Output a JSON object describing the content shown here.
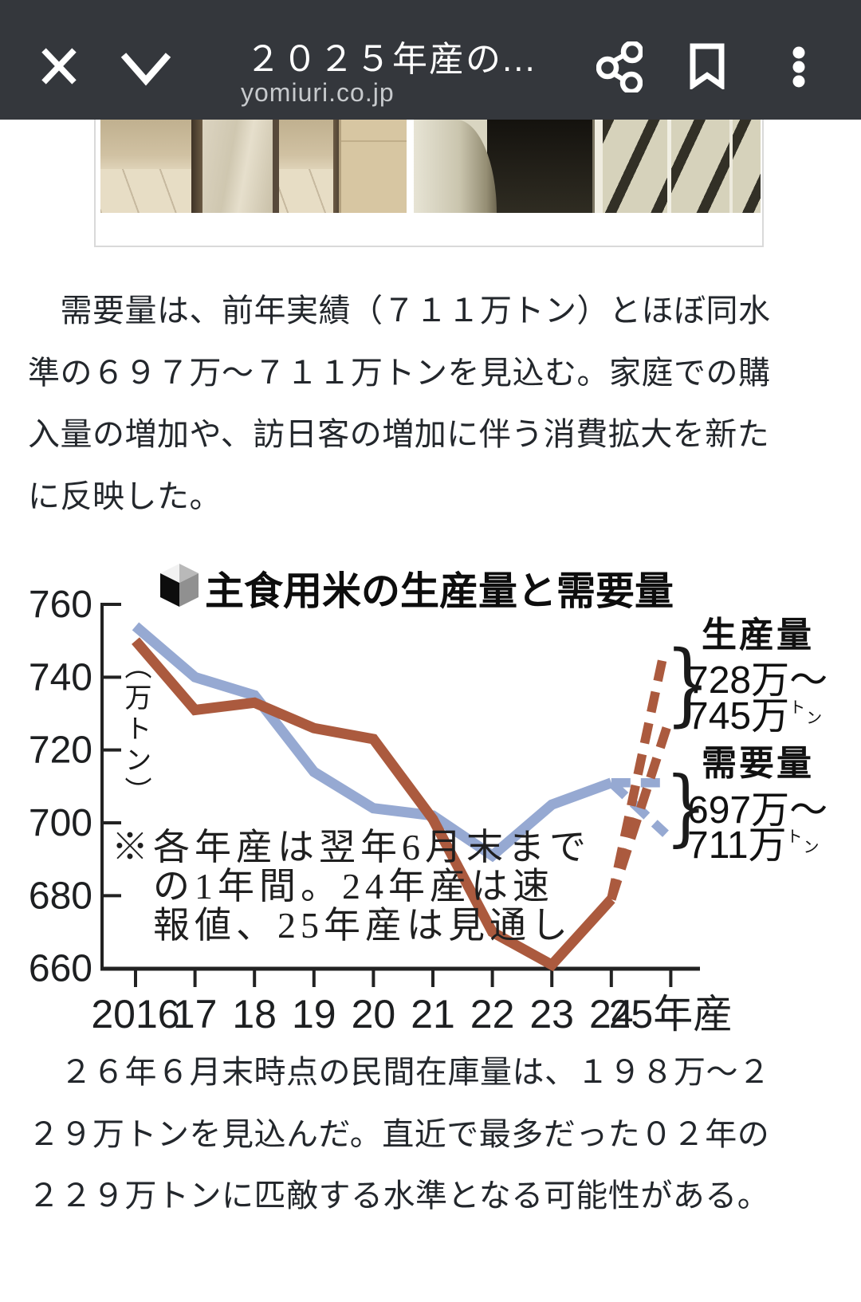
{
  "header": {
    "title": "２０２５年産の...",
    "domain": "yomiuri.co.jp",
    "icons": {
      "close": "close-x",
      "collapse": "chevron-down",
      "share": "share-nodes",
      "bookmark": "bookmark-outline",
      "menu": "kebab-menu"
    }
  },
  "article": {
    "paragraph1": "　需要量は、前年実績（７１１万トン）とほぼ同水\n準の６９７万～７１１万トンを見込む。家庭での購\n入量の増加や、訪日客の増加に伴う消費拡大を新た\nに反映した。",
    "paragraph2": "　２６年６月末時点の民間在庫量は、１９８万～２\n２９万トンを見込んだ。直近で最多だった０２年の\n２２９万トンに匹敵する水準となる可能性がある。"
  },
  "chart_data": {
    "type": "line",
    "title": "主食用米の生産量と需要量",
    "unit_label": "（万トン）",
    "note": "※各年産は翌年6月末まで\n　の1年間。24年産は速\n　報値、25年産は見通し",
    "x_categories": [
      "2016",
      "17",
      "18",
      "19",
      "20",
      "21",
      "22",
      "23",
      "24",
      "25年産"
    ],
    "yticks": [
      760,
      740,
      720,
      700,
      680,
      660
    ],
    "ylim": [
      660,
      765
    ],
    "grid": false,
    "legend_position": "right",
    "series": [
      {
        "name": "生産量",
        "color": "#ab5a3e",
        "style": "solid 2016-2024, dashed forecast 2025",
        "values_2016_2024": [
          750,
          731,
          733,
          726,
          723,
          701,
          670,
          661,
          679
        ],
        "forecast_2025_range": [
          728,
          745
        ]
      },
      {
        "name": "需要量",
        "color": "#96a9d2",
        "style": "solid 2016-2024, dashed forecast 2025",
        "values_2016_2024": [
          754,
          740,
          735,
          714,
          704,
          702,
          691,
          705,
          711
        ],
        "forecast_2025_range": [
          697,
          711
        ]
      }
    ],
    "legend": {
      "production_label": "生産量",
      "production_range_line1": "728万～",
      "production_range_line2": "745万",
      "demand_label": "需要量",
      "demand_range_line1": "697万～",
      "demand_range_line2": "711万",
      "ton_char1": "ト",
      "ton_char2": "ン",
      "brace": "}"
    }
  }
}
